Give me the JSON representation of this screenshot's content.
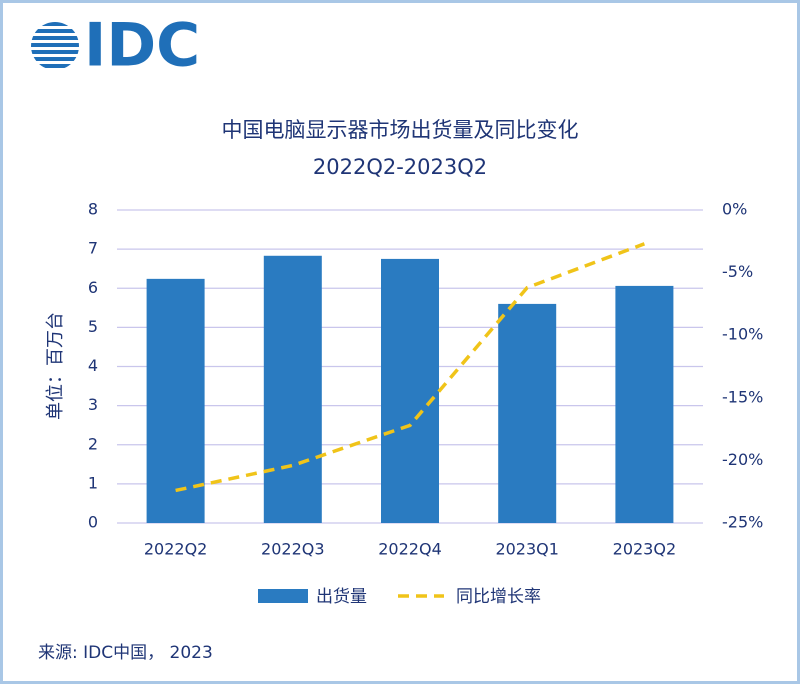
{
  "logo": "IDC",
  "source": "来源: IDC中国， 2023",
  "chart_data": {
    "type": "bar-line",
    "title": "中国电脑显示器市场出货量及同比变化",
    "subtitle": "2022Q2-2023Q2",
    "ylabel": "单位：百万台",
    "categories": [
      "2022Q2",
      "2022Q3",
      "2022Q4",
      "2023Q1",
      "2023Q2"
    ],
    "series": [
      {
        "name": "出货量",
        "type": "bar",
        "color": "#2a7bc1",
        "values": [
          6.24,
          6.83,
          6.75,
          5.6,
          6.06
        ]
      },
      {
        "name": "同比增长率",
        "type": "line",
        "dashed": true,
        "axis": "y2",
        "color": "#f0c419",
        "values": [
          -22.4,
          -20.4,
          -17.2,
          -6.2,
          -2.7
        ]
      }
    ],
    "ylim": [
      0,
      8
    ],
    "yticks": [
      0,
      1,
      2,
      3,
      4,
      5,
      6,
      7,
      8
    ],
    "y2lim": [
      -25,
      0
    ],
    "y2ticks": [
      {
        "value": -25,
        "label": "-25%"
      },
      {
        "value": -20,
        "label": "-20%"
      },
      {
        "value": -15,
        "label": "-15%"
      },
      {
        "value": -10,
        "label": "-10%"
      },
      {
        "value": -5,
        "label": "-5%"
      },
      {
        "value": 0,
        "label": "0%"
      }
    ],
    "grid": true,
    "legend": "bottom"
  }
}
